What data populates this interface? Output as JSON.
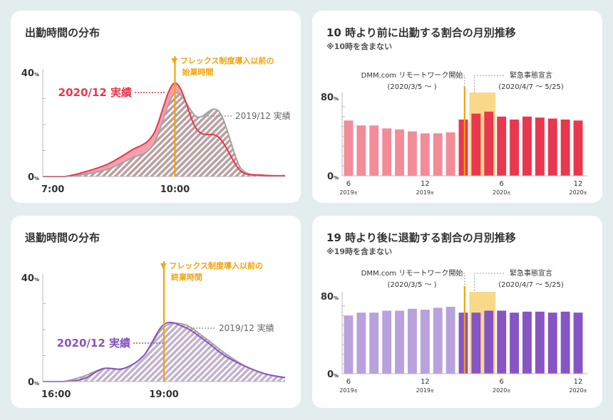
{
  "colors": {
    "red": "#e8374f",
    "red_light": "#f28c99",
    "red_fill": "#f5a1ab",
    "purple": "#8754c5",
    "purple_light": "#b8a1dd",
    "gray": "#a4a4a4",
    "hatch_bg": "#bba0a1",
    "hatch_bg_purple": "#c2b4c8",
    "orange": "#f4a20a",
    "highlight": "#f8d98a",
    "text": "#333333"
  },
  "panels": {
    "p1": {
      "title": "出勤時間の分布"
    },
    "p2": {
      "title": "10 時より前に出勤する割合の月別推移",
      "subtitle": "※10時を含まない"
    },
    "p3": {
      "title": "退勤時間の分布"
    },
    "p4": {
      "title": "19 時より後に退勤する割合の月別推移",
      "subtitle": "※19時を含まない"
    }
  },
  "chart_data": [
    {
      "type": "area",
      "title": "出勤時間の分布",
      "x": [
        "7:00",
        "7:30",
        "8:00",
        "8:30",
        "9:00",
        "9:30",
        "10:00",
        "10:30",
        "11:00",
        "11:30",
        "12:00",
        "12:30"
      ],
      "series": [
        {
          "name": "2020/12 実績",
          "values": [
            0,
            0,
            2,
            5,
            10,
            16,
            36,
            18,
            15,
            2,
            0.5,
            0.3
          ]
        },
        {
          "name": "2019/12 実績",
          "values": [
            0,
            0,
            1,
            3,
            7,
            12,
            32,
            23,
            25,
            3,
            0.5,
            0.3
          ]
        }
      ],
      "y_ticks": [
        {
          "label": "40",
          "unit": "%",
          "value": 40
        },
        {
          "label": "0",
          "unit": "%",
          "value": 0
        }
      ],
      "ylim": [
        0,
        40
      ],
      "x_ticks": [
        "7:00",
        "10:00"
      ],
      "marker": {
        "x": "10:00",
        "line1": "▼ フレックス制度導入以前の",
        "line2": "始業時間"
      },
      "labels": {
        "primary": "2020/12 実績",
        "secondary": "2019/12 実績"
      }
    },
    {
      "type": "bar",
      "title": "10 時より前に出勤する割合の月別推移",
      "categories": [
        "2019/6",
        "2019/7",
        "2019/8",
        "2019/9",
        "2019/10",
        "2019/11",
        "2019/12",
        "2020/1",
        "2020/2",
        "2020/3",
        "2020/4",
        "2020/5",
        "2020/6",
        "2020/7",
        "2020/8",
        "2020/9",
        "2020/10",
        "2020/11",
        "2020/12"
      ],
      "values": [
        56,
        51,
        51,
        48,
        47,
        45,
        43,
        43,
        44,
        57,
        63,
        65,
        60,
        57,
        60,
        59,
        58,
        57,
        56
      ],
      "ylim": [
        0,
        80
      ],
      "y_ticks": [
        {
          "label": "80",
          "unit": "%",
          "value": 80
        },
        {
          "label": "0",
          "unit": "%",
          "value": 0
        }
      ],
      "x_ticks": [
        {
          "month": "6",
          "year": "2019",
          "ys": "年",
          "index": 0
        },
        {
          "month": "12",
          "year": "2019",
          "ys": "年",
          "index": 6
        },
        {
          "month": "6",
          "year": "2020",
          "ys": "年",
          "index": 12
        },
        {
          "month": "12",
          "year": "2020",
          "ys": "年",
          "index": 18
        }
      ],
      "events": [
        {
          "line1": "DMM.com リモートワーク開始",
          "line2": "(2020/3/5 〜 )"
        },
        {
          "line1": "緊急事態宣言",
          "line2": "(2020/4/7 〜 5/25)"
        }
      ]
    },
    {
      "type": "area",
      "title": "退勤時間の分布",
      "x": [
        "16:00",
        "16:30",
        "17:00",
        "17:30",
        "18:00",
        "18:30",
        "19:00",
        "19:30",
        "20:00",
        "20:30",
        "21:00",
        "21:30",
        "22:00"
      ],
      "series": [
        {
          "name": "2020/12 実績",
          "values": [
            0,
            0,
            1,
            5,
            5,
            10,
            22,
            21,
            16,
            10,
            6,
            3,
            1.5
          ]
        },
        {
          "name": "2019/12 実績",
          "values": [
            0,
            0,
            2,
            5,
            5,
            10,
            21,
            22,
            17,
            11,
            6,
            3,
            1.5
          ]
        }
      ],
      "y_ticks": [
        {
          "label": "40",
          "unit": "%",
          "value": 40
        },
        {
          "label": "0",
          "unit": "%",
          "value": 0
        }
      ],
      "ylim": [
        0,
        40
      ],
      "x_ticks": [
        "16:00",
        "19:00"
      ],
      "marker": {
        "x": "19:00",
        "line1": "▼ フレックス制度導入以前の",
        "line2": "終業時間"
      },
      "labels": {
        "primary": "2020/12 実績",
        "secondary": "2019/12 実績"
      }
    },
    {
      "type": "bar",
      "title": "19 時より後に退勤する割合の月別推移",
      "categories": [
        "2019/6",
        "2019/7",
        "2019/8",
        "2019/9",
        "2019/10",
        "2019/11",
        "2019/12",
        "2020/1",
        "2020/2",
        "2020/3",
        "2020/4",
        "2020/5",
        "2020/6",
        "2020/7",
        "2020/8",
        "2020/9",
        "2020/10",
        "2020/11",
        "2020/12"
      ],
      "values": [
        60,
        63,
        63,
        65,
        65,
        67,
        66,
        68,
        69,
        63,
        63,
        65,
        65,
        63,
        64,
        64,
        63,
        64,
        63
      ],
      "ylim": [
        0,
        80
      ],
      "y_ticks": [
        {
          "label": "80",
          "unit": "%",
          "value": 80
        },
        {
          "label": "0",
          "unit": "%",
          "value": 0
        }
      ],
      "x_ticks": [
        {
          "month": "6",
          "year": "2019",
          "ys": "年",
          "index": 0
        },
        {
          "month": "12",
          "year": "2019",
          "ys": "年",
          "index": 6
        },
        {
          "month": "6",
          "year": "2020",
          "ys": "年",
          "index": 12
        },
        {
          "month": "12",
          "year": "2020",
          "ys": "年",
          "index": 18
        }
      ],
      "events": [
        {
          "line1": "DMM.com リモートワーク開始",
          "line2": "(2020/3/5 〜 )"
        },
        {
          "line1": "緊急事態宣言",
          "line2": "(2020/4/7 〜 5/25)"
        }
      ]
    }
  ]
}
